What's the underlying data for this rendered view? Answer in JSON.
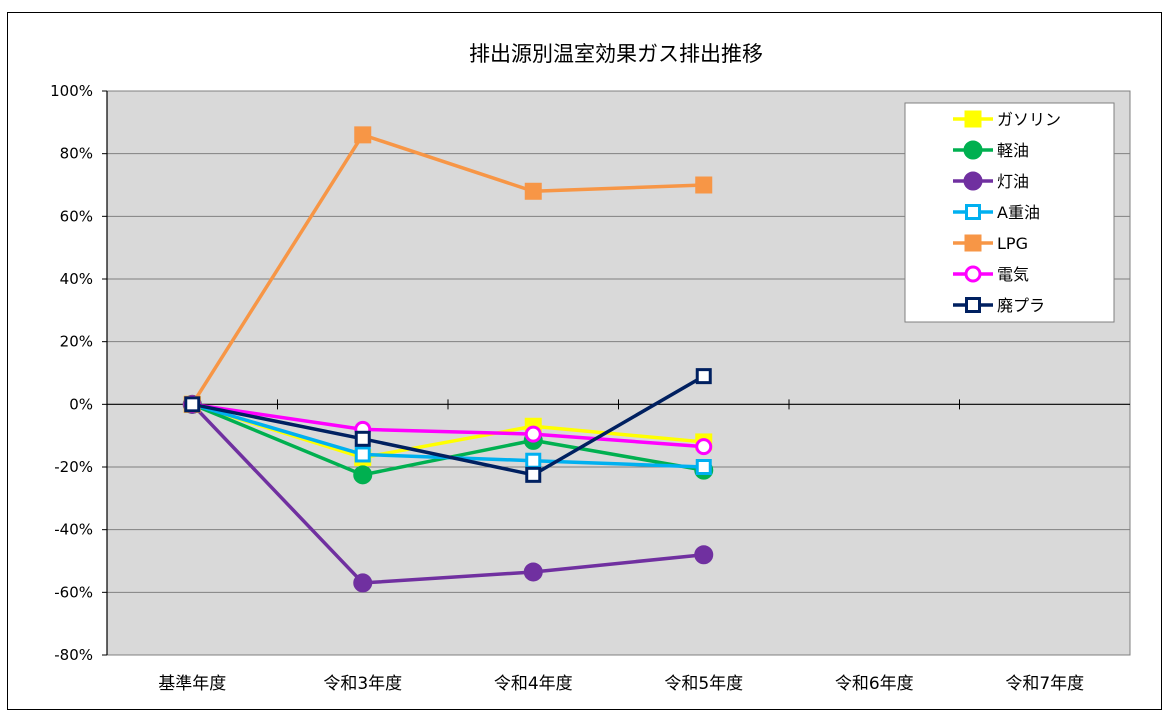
{
  "chart_data": {
    "type": "line",
    "title": "排出源別温室効果ガス排出推移",
    "xlabel": "",
    "ylabel": "",
    "categories": [
      "基準年度",
      "令和3年度",
      "令和4年度",
      "令和5年度",
      "令和6年度",
      "令和7年度"
    ],
    "ylim": [
      -80,
      100
    ],
    "yticks": [
      -80,
      -60,
      -40,
      -20,
      0,
      20,
      40,
      60,
      80,
      100
    ],
    "ytick_labels": [
      "-80%",
      "-60%",
      "-40%",
      "-20%",
      "0%",
      "20%",
      "40%",
      "60%",
      "80%",
      "100%"
    ],
    "grid": true,
    "legend_position": "top-right",
    "series": [
      {
        "name": "ガソリン",
        "color": "#ffff00",
        "marker": "filled-square",
        "values": [
          0,
          -17,
          -7,
          -12,
          null,
          null
        ]
      },
      {
        "name": "軽油",
        "color": "#00b050",
        "marker": "filled-circle",
        "values": [
          0,
          -22.5,
          -11.5,
          -21,
          null,
          null
        ]
      },
      {
        "name": "灯油",
        "color": "#7030a0",
        "marker": "filled-circle",
        "values": [
          0,
          -57,
          -53.5,
          -48,
          null,
          null
        ]
      },
      {
        "name": "A重油",
        "color": "#00b0f0",
        "marker": "hollow-square",
        "values": [
          0,
          -16,
          -18,
          -20,
          null,
          null
        ]
      },
      {
        "name": "LPG",
        "color": "#f79646",
        "marker": "filled-square",
        "values": [
          0,
          86,
          68,
          70,
          null,
          null
        ]
      },
      {
        "name": "電気",
        "color": "#ff00ff",
        "marker": "hollow-circle",
        "values": [
          0,
          -8,
          -9.5,
          -13.5,
          null,
          null
        ]
      },
      {
        "name": "廃プラ",
        "color": "#002060",
        "marker": "hollow-square",
        "values": [
          0,
          -11,
          -22.5,
          9,
          null,
          null
        ]
      }
    ]
  }
}
